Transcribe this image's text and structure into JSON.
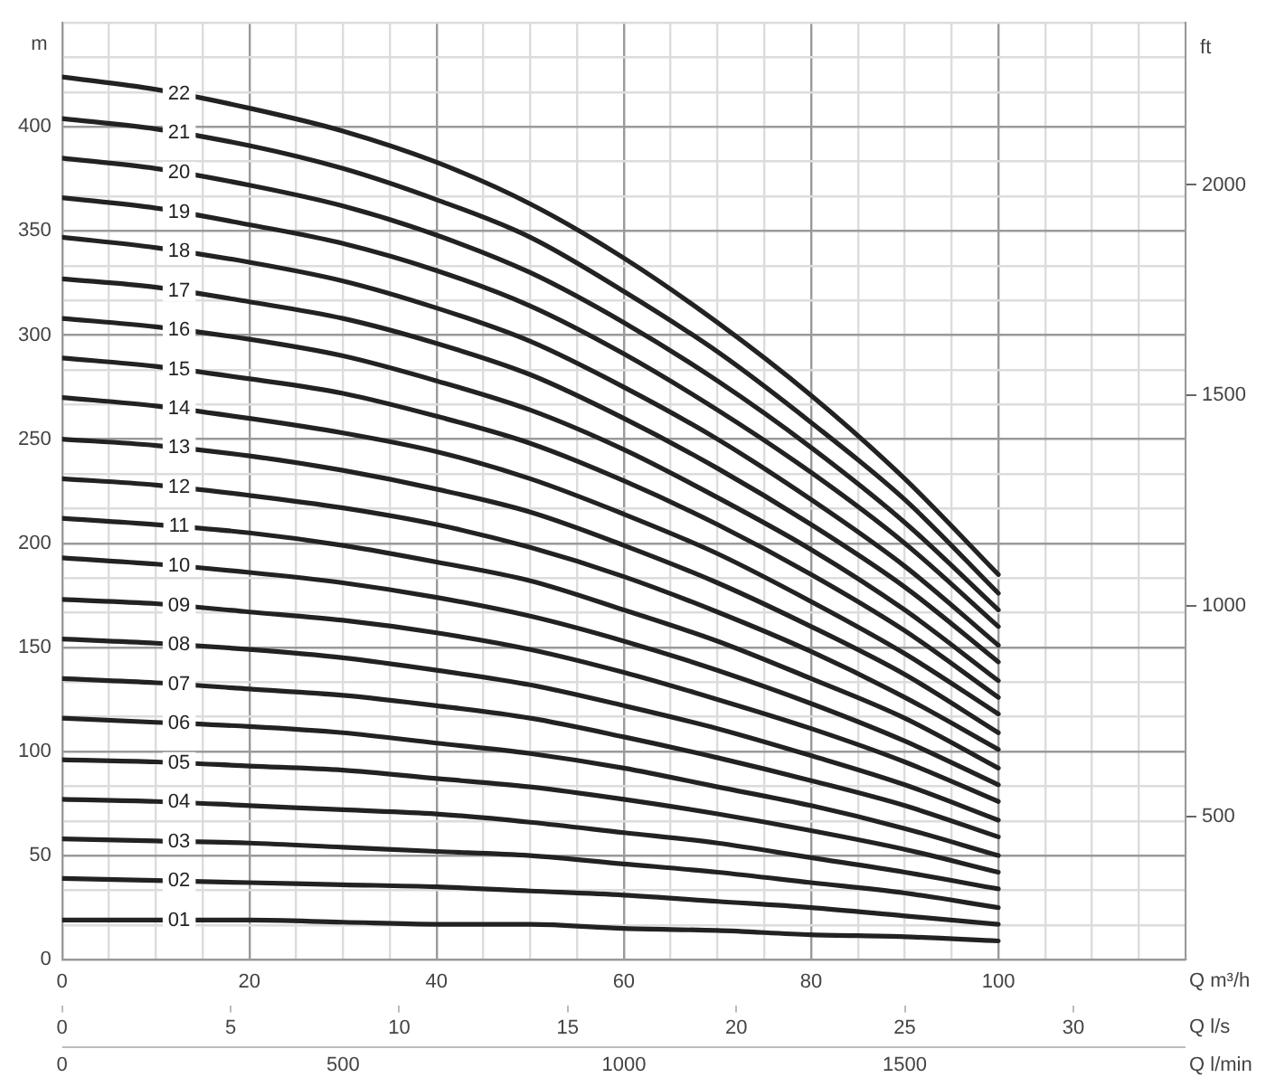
{
  "chart_data": {
    "type": "line",
    "xlabel": "Q m³/h",
    "ylabel": "m",
    "y2label": "ft",
    "x2label": "Q l/s",
    "annotations": [
      "0",
      "500",
      "1000",
      "1500",
      "Q l/min"
    ],
    "x": [
      0,
      10,
      20,
      30,
      40,
      50,
      60,
      70,
      80,
      90,
      100
    ],
    "series": [
      {
        "name": "01",
        "color": "#222222",
        "values": [
          19,
          19,
          19,
          18,
          17,
          17,
          15,
          14,
          12,
          11,
          9
        ]
      },
      {
        "name": "02",
        "color": "#222222",
        "values": [
          39,
          38,
          37,
          36,
          35,
          33,
          31,
          28,
          25,
          21,
          17
        ]
      },
      {
        "name": "03",
        "color": "#222222",
        "values": [
          58,
          57,
          56,
          54,
          52,
          50,
          46,
          42,
          37,
          32,
          25
        ]
      },
      {
        "name": "04",
        "color": "#222222",
        "values": [
          77,
          76,
          74,
          72,
          70,
          66,
          61,
          56,
          49,
          42,
          34
        ]
      },
      {
        "name": "05",
        "color": "#222222",
        "values": [
          96,
          95,
          93,
          91,
          87,
          83,
          77,
          70,
          62,
          53,
          42
        ]
      },
      {
        "name": "06",
        "color": "#222222",
        "values": [
          116,
          114,
          112,
          109,
          104,
          99,
          92,
          83,
          74,
          63,
          50
        ]
      },
      {
        "name": "07",
        "color": "#222222",
        "values": [
          135,
          133,
          130,
          127,
          122,
          116,
          107,
          97,
          86,
          74,
          59
        ]
      },
      {
        "name": "08",
        "color": "#222222",
        "values": [
          154,
          152,
          149,
          145,
          139,
          132,
          122,
          111,
          98,
          84,
          67
        ]
      },
      {
        "name": "09",
        "color": "#222222",
        "values": [
          173,
          171,
          167,
          163,
          157,
          149,
          138,
          125,
          111,
          95,
          76
        ]
      },
      {
        "name": "10",
        "color": "#222222",
        "values": [
          193,
          190,
          186,
          181,
          174,
          165,
          153,
          139,
          123,
          105,
          84
        ]
      },
      {
        "name": "11",
        "color": "#222222",
        "values": [
          212,
          209,
          205,
          199,
          191,
          182,
          168,
          153,
          135,
          116,
          92
        ]
      },
      {
        "name": "12",
        "color": "#222222",
        "values": [
          231,
          228,
          223,
          217,
          209,
          198,
          184,
          167,
          148,
          126,
          101
        ]
      },
      {
        "name": "13",
        "color": "#222222",
        "values": [
          250,
          247,
          242,
          235,
          226,
          215,
          199,
          181,
          160,
          137,
          109
        ]
      },
      {
        "name": "14",
        "color": "#222222",
        "values": [
          270,
          266,
          260,
          253,
          244,
          231,
          214,
          195,
          172,
          147,
          118
        ]
      },
      {
        "name": "15",
        "color": "#222222",
        "values": [
          289,
          285,
          279,
          272,
          261,
          248,
          230,
          209,
          185,
          158,
          126
        ]
      },
      {
        "name": "16",
        "color": "#222222",
        "values": [
          308,
          304,
          298,
          290,
          278,
          264,
          245,
          222,
          197,
          168,
          134
        ]
      },
      {
        "name": "17",
        "color": "#222222",
        "values": [
          327,
          323,
          316,
          308,
          296,
          281,
          260,
          236,
          209,
          179,
          143
        ]
      },
      {
        "name": "18",
        "color": "#222222",
        "values": [
          347,
          342,
          335,
          326,
          313,
          297,
          275,
          250,
          221,
          189,
          151
        ]
      },
      {
        "name": "19",
        "color": "#222222",
        "values": [
          366,
          361,
          353,
          344,
          331,
          314,
          291,
          264,
          234,
          200,
          160
        ]
      },
      {
        "name": "20",
        "color": "#222222",
        "values": [
          385,
          380,
          372,
          362,
          348,
          330,
          306,
          278,
          246,
          210,
          168
        ]
      },
      {
        "name": "21",
        "color": "#222222",
        "values": [
          404,
          399,
          391,
          380,
          365,
          347,
          321,
          292,
          258,
          221,
          176
        ]
      },
      {
        "name": "22",
        "color": "#222222",
        "values": [
          424,
          418,
          409,
          398,
          383,
          363,
          337,
          306,
          271,
          231,
          185
        ]
      }
    ],
    "xlim": [
      0,
      120
    ],
    "xticks": [
      0,
      {
        "value": 5,
        "label": null
      },
      {
        "value": 10,
        "label": null
      },
      {
        "value": 15,
        "label": null
      },
      20,
      {
        "value": 25,
        "label": null
      },
      {
        "value": 30,
        "label": null
      },
      {
        "value": 35,
        "label": null
      },
      40,
      {
        "value": 45,
        "label": null
      },
      {
        "value": 50,
        "label": null
      },
      {
        "value": 55,
        "label": null
      },
      60,
      {
        "value": 65,
        "label": null
      },
      {
        "value": 70,
        "label": null
      },
      {
        "value": 75,
        "label": null
      },
      80,
      {
        "value": 85,
        "label": null
      },
      {
        "value": 90,
        "label": null
      },
      {
        "value": 95,
        "label": null
      },
      100,
      {
        "value": 105,
        "label": null
      },
      {
        "value": 110,
        "label": null
      },
      {
        "value": 115,
        "label": null
      },
      {
        "value": 120,
        "label": null
      }
    ],
    "x2lim": [
      0,
      33.33
    ],
    "x2ticks": [
      0,
      5,
      10,
      15,
      20,
      25,
      30
    ],
    "ylim": [
      0,
      450
    ],
    "yticks": [
      0,
      {
        "value": 16.67,
        "label": null
      },
      {
        "value": 33.33,
        "label": null
      },
      50,
      {
        "value": 66.67,
        "label": null
      },
      {
        "value": 83.33,
        "label": null
      },
      100,
      {
        "value": 116.67,
        "label": null
      },
      {
        "value": 133.33,
        "label": null
      },
      150,
      {
        "value": 166.67,
        "label": null
      },
      {
        "value": 183.33,
        "label": null
      },
      200,
      {
        "value": 216.67,
        "label": null
      },
      {
        "value": 233.33,
        "label": null
      },
      250,
      {
        "value": 266.67,
        "label": null
      },
      {
        "value": 283.33,
        "label": null
      },
      300,
      {
        "value": 316.67,
        "label": null
      },
      {
        "value": 333.33,
        "label": null
      },
      350,
      {
        "value": 366.67,
        "label": null
      },
      {
        "value": 383.33,
        "label": null
      },
      400,
      {
        "value": 416.67,
        "label": null
      },
      {
        "value": 433.33,
        "label": null
      },
      {
        "value": 450,
        "label": null
      }
    ],
    "y2lim": [
      160,
      2385
    ],
    "y2ticks": [
      500,
      1000,
      1500,
      2000
    ],
    "grid": true,
    "marker": "none",
    "line_style": "solid"
  }
}
